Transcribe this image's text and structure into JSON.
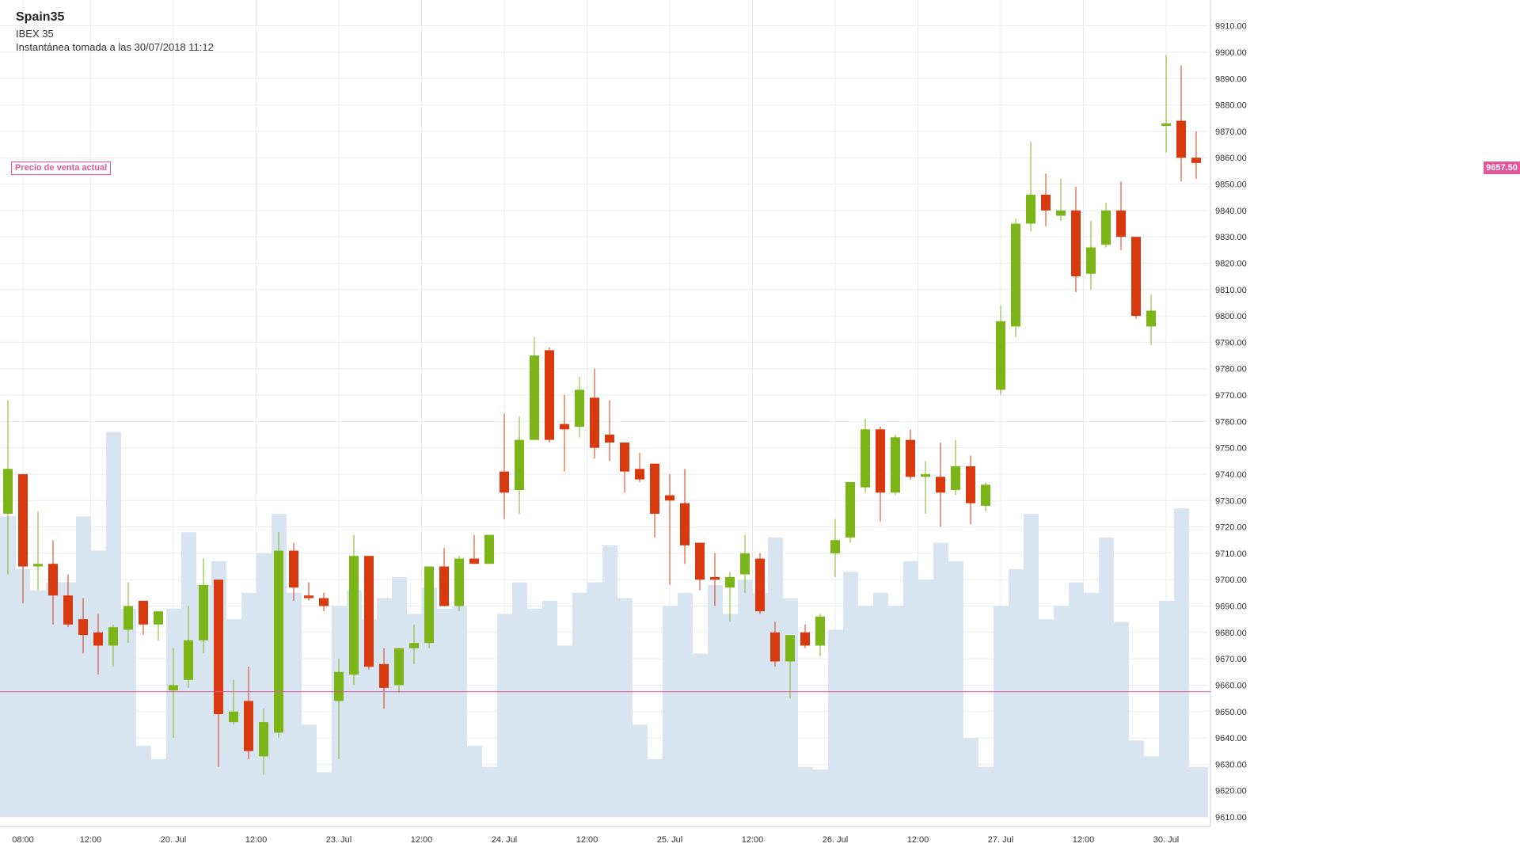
{
  "header": {
    "title": "Spain35",
    "subtitle": "IBEX 35",
    "snapshot": "Instantánea tomada a las 30/07/2018 11:12"
  },
  "price_line": {
    "label": "Precio de venta actual",
    "value_label": "9657.50",
    "color": "#e2569a"
  },
  "colors": {
    "up": "#7cb518",
    "down": "#d9390f",
    "volume": "#d8e4f0",
    "grid": "#e8ebf0"
  },
  "chart_data": {
    "type": "candlestick",
    "title": "Spain35",
    "y_axis_position": "right",
    "ylim": [
      9610,
      9912
    ],
    "y_ticks": [
      "9610.00",
      "9620.00",
      "9630.00",
      "9640.00",
      "9650.00",
      "9660.00",
      "9670.00",
      "9680.00",
      "9690.00",
      "9700.00",
      "9710.00",
      "9720.00",
      "9730.00",
      "9740.00",
      "9750.00",
      "9760.00",
      "9770.00",
      "9780.00",
      "9790.00",
      "9800.00",
      "9810.00",
      "9820.00",
      "9830.00",
      "9840.00",
      "9850.00",
      "9860.00",
      "9870.00",
      "9880.00",
      "9890.00",
      "9900.00",
      "9910.00"
    ],
    "x_ticks": [
      {
        "label": "08:00",
        "index": 1
      },
      {
        "label": "12:00",
        "index": 5.5
      },
      {
        "label": "20. Jul",
        "index": 11
      },
      {
        "label": "12:00",
        "index": 16.5
      },
      {
        "label": "23. Jul",
        "index": 22
      },
      {
        "label": "12:00",
        "index": 27.5
      },
      {
        "label": "24. Jul",
        "index": 33
      },
      {
        "label": "12:00",
        "index": 38.5
      },
      {
        "label": "25. Jul",
        "index": 44
      },
      {
        "label": "12:00",
        "index": 49.5
      },
      {
        "label": "26. Jul",
        "index": 55
      },
      {
        "label": "12:00",
        "index": 60.5
      },
      {
        "label": "27. Jul",
        "index": 66
      },
      {
        "label": "12:00",
        "index": 71.5
      },
      {
        "label": "30. Jul",
        "index": 77
      }
    ],
    "grid": true,
    "current_price": 9657.5,
    "candles": [
      {
        "o": 9725,
        "h": 9768,
        "l": 9702,
        "c": 9742
      },
      {
        "o": 9740,
        "h": 9740,
        "l": 9691,
        "c": 9705
      },
      {
        "o": 9705,
        "h": 9726,
        "l": 9696,
        "c": 9706
      },
      {
        "o": 9706,
        "h": 9715,
        "l": 9683,
        "c": 9694
      },
      {
        "o": 9694,
        "h": 9702,
        "l": 9682,
        "c": 9683
      },
      {
        "o": 9685,
        "h": 9693,
        "l": 9672,
        "c": 9679
      },
      {
        "o": 9680,
        "h": 9687,
        "l": 9664,
        "c": 9675
      },
      {
        "o": 9675,
        "h": 9683,
        "l": 9667,
        "c": 9682
      },
      {
        "o": 9681,
        "h": 9699,
        "l": 9676,
        "c": 9690
      },
      {
        "o": 9692,
        "h": 9692,
        "l": 9679,
        "c": 9683
      },
      {
        "o": 9683,
        "h": 9688,
        "l": 9677,
        "c": 9688
      },
      {
        "o": 9658,
        "h": 9674,
        "l": 9640,
        "c": 9660
      },
      {
        "o": 9662,
        "h": 9690,
        "l": 9659,
        "c": 9677
      },
      {
        "o": 9677,
        "h": 9708,
        "l": 9672,
        "c": 9698
      },
      {
        "o": 9700,
        "h": 9700,
        "l": 9629,
        "c": 9649
      },
      {
        "o": 9646,
        "h": 9662,
        "l": 9645,
        "c": 9650
      },
      {
        "o": 9654,
        "h": 9667,
        "l": 9632,
        "c": 9635
      },
      {
        "o": 9633,
        "h": 9651,
        "l": 9626,
        "c": 9646
      },
      {
        "o": 9642,
        "h": 9718,
        "l": 9640,
        "c": 9711
      },
      {
        "o": 9711,
        "h": 9714,
        "l": 9692,
        "c": 9697
      },
      {
        "o": 9694,
        "h": 9699,
        "l": 9692,
        "c": 9693
      },
      {
        "o": 9693,
        "h": 9695,
        "l": 9688,
        "c": 9690
      },
      {
        "o": 9654,
        "h": 9670,
        "l": 9632,
        "c": 9665
      },
      {
        "o": 9664,
        "h": 9717,
        "l": 9660,
        "c": 9709
      },
      {
        "o": 9709,
        "h": 9709,
        "l": 9666,
        "c": 9667
      },
      {
        "o": 9668,
        "h": 9674,
        "l": 9651,
        "c": 9659
      },
      {
        "o": 9660,
        "h": 9674,
        "l": 9657,
        "c": 9674
      },
      {
        "o": 9674,
        "h": 9683,
        "l": 9668,
        "c": 9676
      },
      {
        "o": 9676,
        "h": 9705,
        "l": 9674,
        "c": 9705
      },
      {
        "o": 9705,
        "h": 9712,
        "l": 9690,
        "c": 9690
      },
      {
        "o": 9690,
        "h": 9709,
        "l": 9688,
        "c": 9708
      },
      {
        "o": 9708,
        "h": 9717,
        "l": 9706,
        "c": 9706
      },
      {
        "o": 9706,
        "h": 9717,
        "l": 9706,
        "c": 9717
      },
      {
        "o": 9741,
        "h": 9763,
        "l": 9723,
        "c": 9733
      },
      {
        "o": 9734,
        "h": 9762,
        "l": 9725,
        "c": 9753
      },
      {
        "o": 9753,
        "h": 9792,
        "l": 9753,
        "c": 9785
      },
      {
        "o": 9787,
        "h": 9788,
        "l": 9752,
        "c": 9753
      },
      {
        "o": 9759,
        "h": 9770,
        "l": 9741,
        "c": 9757
      },
      {
        "o": 9758,
        "h": 9777,
        "l": 9754,
        "c": 9772
      },
      {
        "o": 9769,
        "h": 9780,
        "l": 9746,
        "c": 9750
      },
      {
        "o": 9755,
        "h": 9768,
        "l": 9745,
        "c": 9752
      },
      {
        "o": 9752,
        "h": 9752,
        "l": 9733,
        "c": 9741
      },
      {
        "o": 9742,
        "h": 9748,
        "l": 9737,
        "c": 9738
      },
      {
        "o": 9744,
        "h": 9744,
        "l": 9716,
        "c": 9725
      },
      {
        "o": 9732,
        "h": 9740,
        "l": 9698,
        "c": 9730
      },
      {
        "o": 9729,
        "h": 9742,
        "l": 9706,
        "c": 9713
      },
      {
        "o": 9714,
        "h": 9714,
        "l": 9696,
        "c": 9700
      },
      {
        "o": 9701,
        "h": 9710,
        "l": 9690,
        "c": 9700
      },
      {
        "o": 9697,
        "h": 9703,
        "l": 9684,
        "c": 9701
      },
      {
        "o": 9702,
        "h": 9717,
        "l": 9695,
        "c": 9710
      },
      {
        "o": 9708,
        "h": 9710,
        "l": 9687,
        "c": 9688
      },
      {
        "o": 9680,
        "h": 9684,
        "l": 9667,
        "c": 9669
      },
      {
        "o": 9669,
        "h": 9679,
        "l": 9655,
        "c": 9679
      },
      {
        "o": 9680,
        "h": 9683,
        "l": 9674,
        "c": 9675
      },
      {
        "o": 9675,
        "h": 9687,
        "l": 9671,
        "c": 9686
      },
      {
        "o": 9710,
        "h": 9723,
        "l": 9701,
        "c": 9715
      },
      {
        "o": 9716,
        "h": 9737,
        "l": 9714,
        "c": 9737
      },
      {
        "o": 9735,
        "h": 9761,
        "l": 9733,
        "c": 9757
      },
      {
        "o": 9757,
        "h": 9758,
        "l": 9722,
        "c": 9733
      },
      {
        "o": 9733,
        "h": 9755,
        "l": 9732,
        "c": 9754
      },
      {
        "o": 9753,
        "h": 9757,
        "l": 9738,
        "c": 9739
      },
      {
        "o": 9739,
        "h": 9745,
        "l": 9725,
        "c": 9740
      },
      {
        "o": 9739,
        "h": 9752,
        "l": 9720,
        "c": 9733
      },
      {
        "o": 9734,
        "h": 9753,
        "l": 9732,
        "c": 9743
      },
      {
        "o": 9743,
        "h": 9747,
        "l": 9721,
        "c": 9729
      },
      {
        "o": 9728,
        "h": 9737,
        "l": 9726,
        "c": 9736
      },
      {
        "o": 9772,
        "h": 9804,
        "l": 9770,
        "c": 9798
      },
      {
        "o": 9796,
        "h": 9837,
        "l": 9792,
        "c": 9835
      },
      {
        "o": 9835,
        "h": 9866,
        "l": 9832,
        "c": 9846
      },
      {
        "o": 9846,
        "h": 9854,
        "l": 9834,
        "c": 9840
      },
      {
        "o": 9838,
        "h": 9852,
        "l": 9836,
        "c": 9840
      },
      {
        "o": 9840,
        "h": 9849,
        "l": 9809,
        "c": 9815
      },
      {
        "o": 9816,
        "h": 9836,
        "l": 9810,
        "c": 9826
      },
      {
        "o": 9827,
        "h": 9843,
        "l": 9826,
        "c": 9840
      },
      {
        "o": 9840,
        "h": 9851,
        "l": 9825,
        "c": 9830
      },
      {
        "o": 9830,
        "h": 9830,
        "l": 9799,
        "c": 9800
      },
      {
        "o": 9796,
        "h": 9808,
        "l": 9789,
        "c": 9802
      },
      {
        "o": 9873,
        "h": 9899,
        "l": 9862,
        "c": 9873
      },
      {
        "o": 9874,
        "h": 9895,
        "l": 9851,
        "c": 9860
      },
      {
        "o": 9860,
        "h": 9870,
        "l": 9852,
        "c": 9858
      }
    ],
    "volume_bars": [
      {
        "x0": 0,
        "x1": 20,
        "v": 9724
      },
      {
        "x0": 20,
        "x1": 38,
        "v": 9704
      },
      {
        "x0": 38,
        "x1": 58,
        "v": 9696
      },
      {
        "x0": 58,
        "x1": 96,
        "v": 9699
      },
      {
        "x0": 96,
        "x1": 115,
        "v": 9724
      },
      {
        "x0": 115,
        "x1": 134,
        "v": 9711
      },
      {
        "x0": 134,
        "x1": 153,
        "v": 9756
      },
      {
        "x0": 153,
        "x1": 172,
        "v": 9689
      },
      {
        "x0": 172,
        "x1": 191,
        "v": 9637
      },
      {
        "x0": 191,
        "x1": 210,
        "v": 9632
      },
      {
        "x0": 210,
        "x1": 229,
        "v": 9689
      },
      {
        "x0": 229,
        "x1": 248,
        "v": 9718
      },
      {
        "x0": 248,
        "x1": 267,
        "v": 9698
      },
      {
        "x0": 267,
        "x1": 286,
        "v": 9707
      },
      {
        "x0": 286,
        "x1": 305,
        "v": 9685
      },
      {
        "x0": 305,
        "x1": 324,
        "v": 9695
      },
      {
        "x0": 324,
        "x1": 343,
        "v": 9710
      },
      {
        "x0": 343,
        "x1": 362,
        "v": 9725
      },
      {
        "x0": 362,
        "x1": 381,
        "v": 9695
      },
      {
        "x0": 381,
        "x1": 400,
        "v": 9645
      },
      {
        "x0": 400,
        "x1": 419,
        "v": 9627
      },
      {
        "x0": 419,
        "x1": 438,
        "v": 9690
      },
      {
        "x0": 438,
        "x1": 457,
        "v": 9696
      },
      {
        "x0": 457,
        "x1": 476,
        "v": 9685
      },
      {
        "x0": 476,
        "x1": 495,
        "v": 9693
      },
      {
        "x0": 495,
        "x1": 514,
        "v": 9701
      },
      {
        "x0": 514,
        "x1": 533,
        "v": 9687
      },
      {
        "x0": 533,
        "x1": 552,
        "v": 9697
      },
      {
        "x0": 552,
        "x1": 571,
        "v": 9689
      },
      {
        "x0": 571,
        "x1": 590,
        "v": 9690
      },
      {
        "x0": 590,
        "x1": 609,
        "v": 9637
      },
      {
        "x0": 609,
        "x1": 628,
        "v": 9629
      },
      {
        "x0": 628,
        "x1": 647,
        "v": 9687
      },
      {
        "x0": 647,
        "x1": 666,
        "v": 9699
      },
      {
        "x0": 666,
        "x1": 685,
        "v": 9689
      },
      {
        "x0": 685,
        "x1": 704,
        "v": 9692
      },
      {
        "x0": 704,
        "x1": 723,
        "v": 9675
      },
      {
        "x0": 723,
        "x1": 742,
        "v": 9695
      },
      {
        "x0": 742,
        "x1": 761,
        "v": 9699
      },
      {
        "x0": 761,
        "x1": 780,
        "v": 9713
      },
      {
        "x0": 780,
        "x1": 799,
        "v": 9693
      },
      {
        "x0": 799,
        "x1": 818,
        "v": 9645
      },
      {
        "x0": 818,
        "x1": 837,
        "v": 9632
      },
      {
        "x0": 837,
        "x1": 856,
        "v": 9690
      },
      {
        "x0": 856,
        "x1": 875,
        "v": 9695
      },
      {
        "x0": 875,
        "x1": 894,
        "v": 9672
      },
      {
        "x0": 894,
        "x1": 913,
        "v": 9698
      },
      {
        "x0": 913,
        "x1": 932,
        "v": 9687
      },
      {
        "x0": 932,
        "x1": 951,
        "v": 9700
      },
      {
        "x0": 951,
        "x1": 970,
        "v": 9695
      },
      {
        "x0": 970,
        "x1": 989,
        "v": 9716
      },
      {
        "x0": 989,
        "x1": 1008,
        "v": 9693
      },
      {
        "x0": 1008,
        "x1": 1027,
        "v": 9629
      },
      {
        "x0": 1027,
        "x1": 1046,
        "v": 9628
      },
      {
        "x0": 1046,
        "x1": 1065,
        "v": 9681
      },
      {
        "x0": 1065,
        "x1": 1084,
        "v": 9703
      },
      {
        "x0": 1084,
        "x1": 1103,
        "v": 9690
      },
      {
        "x0": 1103,
        "x1": 1122,
        "v": 9695
      },
      {
        "x0": 1122,
        "x1": 1141,
        "v": 9690
      },
      {
        "x0": 1141,
        "x1": 1160,
        "v": 9707
      },
      {
        "x0": 1160,
        "x1": 1179,
        "v": 9700
      },
      {
        "x0": 1179,
        "x1": 1198,
        "v": 9714
      },
      {
        "x0": 1198,
        "x1": 1217,
        "v": 9707
      },
      {
        "x0": 1217,
        "x1": 1236,
        "v": 9640
      },
      {
        "x0": 1236,
        "x1": 1255,
        "v": 9629
      },
      {
        "x0": 1255,
        "x1": 1274,
        "v": 9690
      },
      {
        "x0": 1274,
        "x1": 1293,
        "v": 9704
      },
      {
        "x0": 1293,
        "x1": 1312,
        "v": 9725
      },
      {
        "x0": 1312,
        "x1": 1331,
        "v": 9685
      },
      {
        "x0": 1331,
        "x1": 1350,
        "v": 9690
      },
      {
        "x0": 1350,
        "x1": 1369,
        "v": 9699
      },
      {
        "x0": 1369,
        "x1": 1388,
        "v": 9695
      },
      {
        "x0": 1388,
        "x1": 1407,
        "v": 9716
      },
      {
        "x0": 1407,
        "x1": 1426,
        "v": 9684
      },
      {
        "x0": 1426,
        "x1": 1445,
        "v": 9639
      },
      {
        "x0": 1445,
        "x1": 1464,
        "v": 9633
      },
      {
        "x0": 1464,
        "x1": 1483,
        "v": 9692
      },
      {
        "x0": 1483,
        "x1": 1502,
        "v": 9727
      },
      {
        "x0": 1502,
        "x1": 1526,
        "v": 9629
      }
    ]
  }
}
